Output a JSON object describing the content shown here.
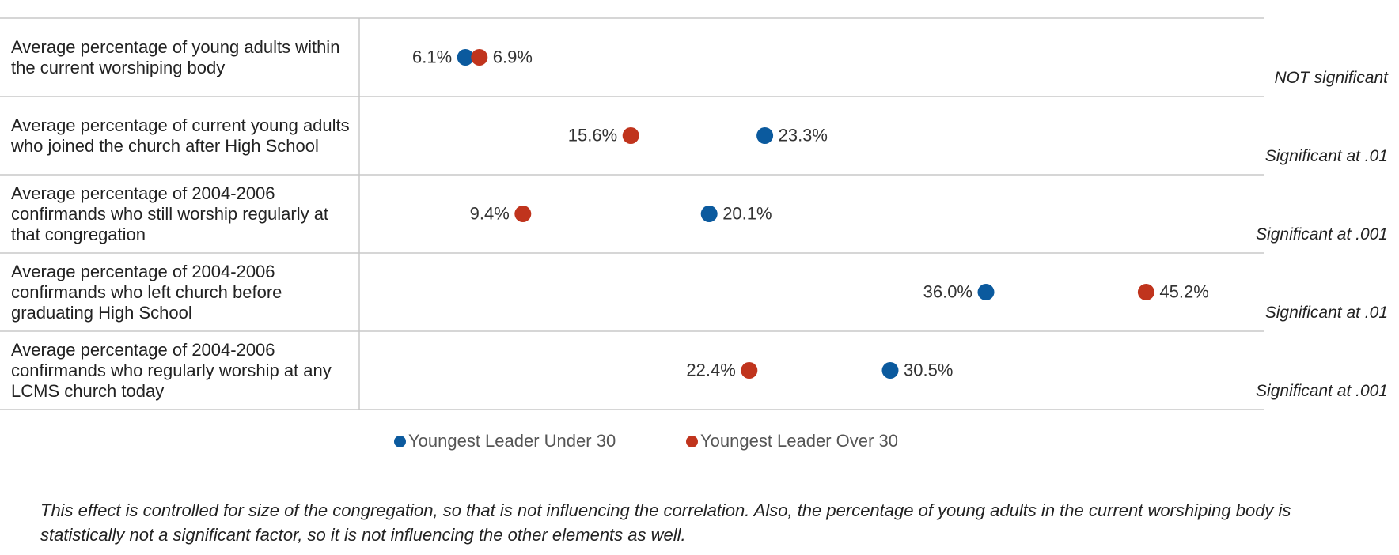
{
  "chart_data": {
    "type": "dot",
    "categories": [
      "Average percentage of young adults within the current worshiping body",
      "Average percentage of current young adults who joined the church after High School",
      "Average percentage of 2004-2006 confirmands who still worship regularly at that congregation",
      "Average percentage of 2004-2006 confirmands who left church before graduating High School",
      "Average percentage of 2004-2006 confirmands who regularly worship at any LCMS church today"
    ],
    "series": [
      {
        "name": "Youngest Leader Under 30",
        "color": "#0b5a9e",
        "values": [
          6.1,
          23.3,
          20.1,
          36.0,
          30.5
        ],
        "value_labels": [
          "6.1%",
          "23.3%",
          "20.1%",
          "36.0%",
          "30.5%"
        ]
      },
      {
        "name": "Youngest Leader Over 30",
        "color": "#c0341d",
        "values": [
          6.9,
          15.6,
          9.4,
          45.2,
          22.4
        ],
        "value_labels": [
          "6.9%",
          "15.6%",
          "9.4%",
          "45.2%",
          "22.4%"
        ]
      }
    ],
    "annotations": [
      "NOT significant",
      "Significant at .01",
      "Significant at .001",
      "Significant at .01",
      "Significant at .001"
    ],
    "xlim": [
      0,
      52
    ],
    "footnote": "This effect is controlled for size of the congregation, so that is not influencing the correlation. Also, the percentage of young adults in the current worshiping body is statistically not a significant factor, so it is not influencing the other elements as well."
  }
}
